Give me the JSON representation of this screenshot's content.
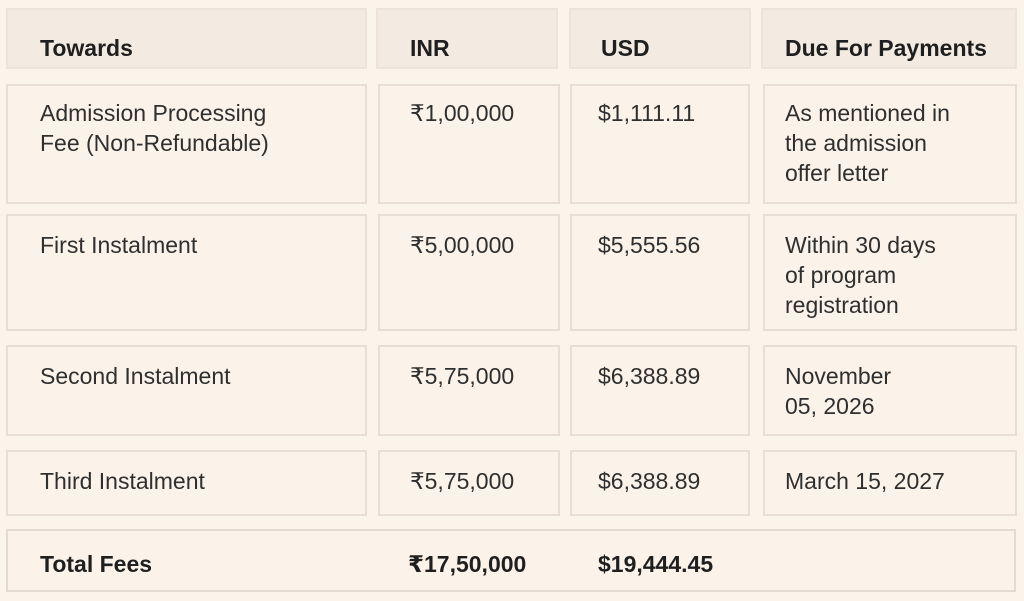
{
  "table": {
    "headers": {
      "towards": "Towards",
      "inr": "INR",
      "usd": "USD",
      "due": "Due For Payments"
    },
    "rows": [
      {
        "towards_line1": "Admission Processing",
        "towards_line2": "Fee (Non-Refundable)",
        "inr": "₹1,00,000",
        "usd": "$1,111.11",
        "due_line1": "As mentioned in",
        "due_line2": "the admission",
        "due_line3": "offer letter"
      },
      {
        "towards": "First Instalment",
        "inr": "₹5,00,000",
        "usd": "$5,555.56",
        "due_line1": "Within 30 days",
        "due_line2": "of program",
        "due_line3": "registration"
      },
      {
        "towards": "Second Instalment",
        "inr": "₹5,75,000",
        "usd": "$6,388.89",
        "due_line1": "November",
        "due_line2": "05, 2026"
      },
      {
        "towards": "Third Instalment",
        "inr": "₹5,75,000",
        "usd": "$6,388.89",
        "due_line1": "March 15, 2027"
      }
    ],
    "total": {
      "label": "Total Fees",
      "inr": "₹17,50,000",
      "usd": "$19,444.45"
    }
  }
}
